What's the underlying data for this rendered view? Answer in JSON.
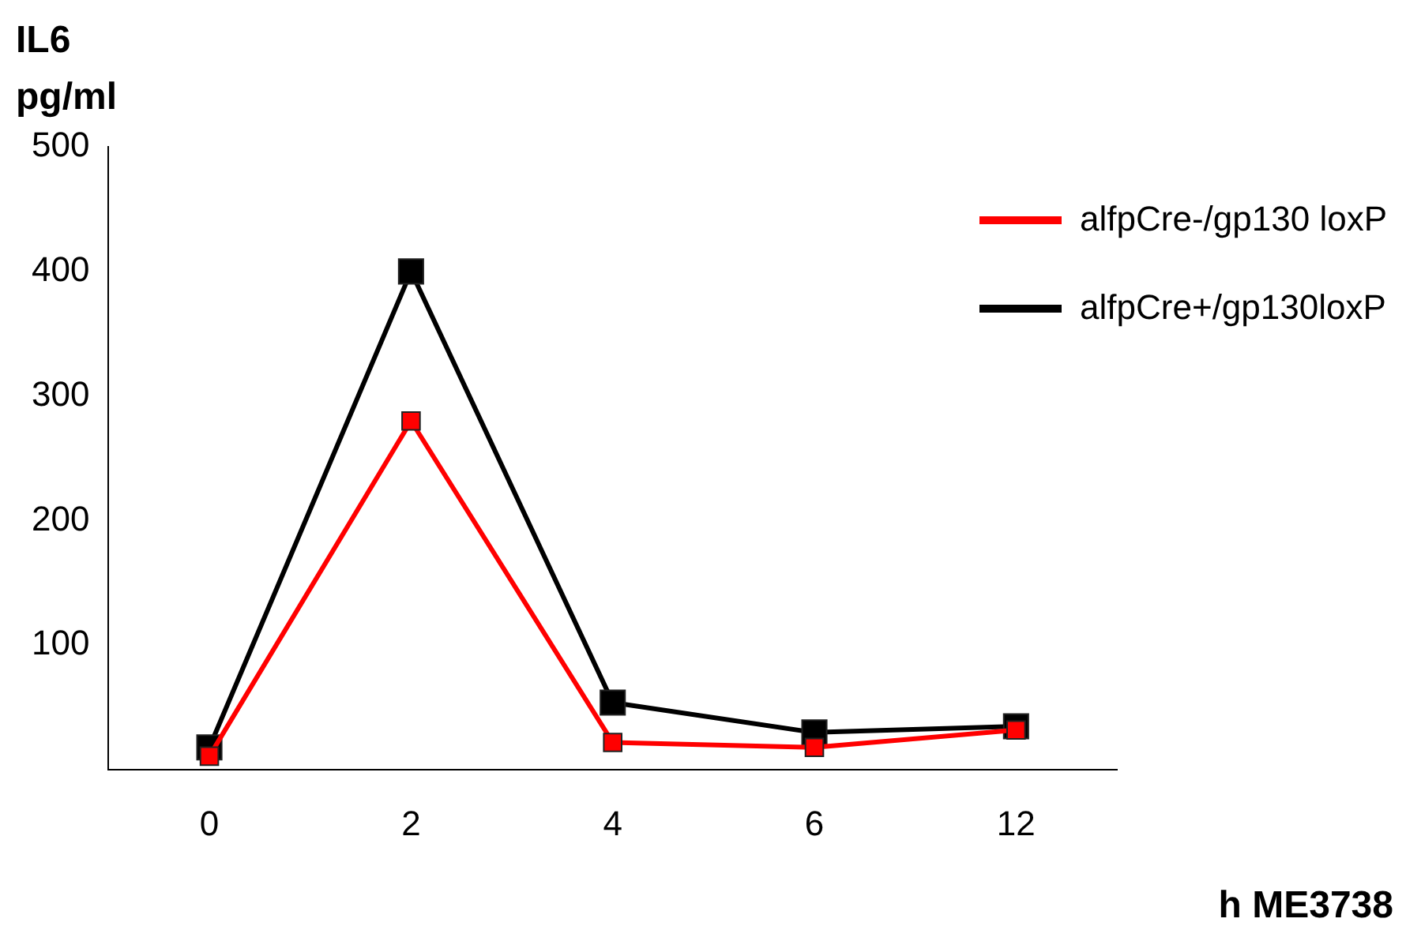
{
  "chart_data": {
    "type": "line",
    "xlabel": "h ME3738",
    "ylabel": "IL6 pg/ml",
    "categories": [
      "0",
      "2",
      "4",
      "6",
      "12"
    ],
    "series": [
      {
        "name": "alfpCre-/gp130 loxP",
        "color": "#ff0000",
        "values": [
          11,
          280,
          22,
          18,
          32
        ]
      },
      {
        "name": "alfpCre+/gp130loxP",
        "color": "#000000",
        "values": [
          18,
          400,
          54,
          30,
          35
        ]
      }
    ],
    "ylim": [
      0,
      500
    ],
    "yticks": [
      100,
      200,
      300,
      400,
      500
    ],
    "grid": false,
    "legend": "top right",
    "marker": "square",
    "line_style": "solid"
  }
}
